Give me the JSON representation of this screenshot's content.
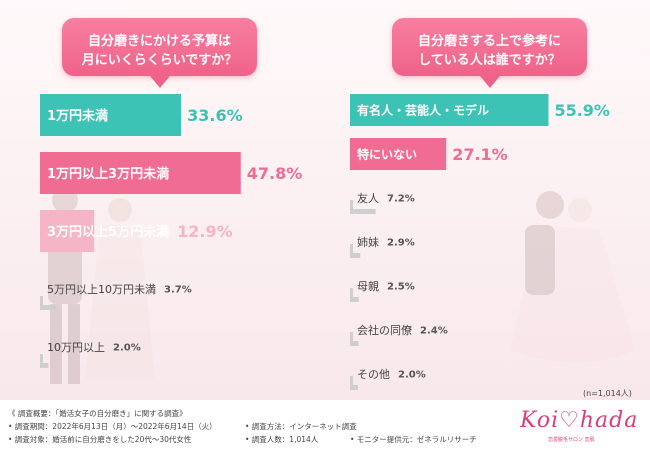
{
  "questions": {
    "left": [
      "自分磨きにかける予算は",
      "月にいくらくらいですか？"
    ],
    "right": [
      "自分磨きする上で参考に",
      "している人は誰ですか？"
    ]
  },
  "chart_data": [
    {
      "type": "bar",
      "orientation": "horizontal",
      "title": "自分磨きにかける予算は月にいくらくらいですか？",
      "categories": [
        "1万円未満",
        "1万円以上3万円未満",
        "3万円以上5万円未満",
        "5万円以上10万円未満",
        "10万円以上"
      ],
      "values": [
        33.6,
        47.8,
        12.9,
        3.7,
        2.0
      ],
      "value_labels": [
        "33.6%",
        "47.8%",
        "12.9%",
        "3.7%",
        "2.0%"
      ],
      "colors": [
        "#3cc3b5",
        "#f06c92",
        "#f6b5c6",
        "#cfcfcf",
        "#cfcfcf"
      ],
      "unit": "%"
    },
    {
      "type": "bar",
      "orientation": "horizontal",
      "title": "自分磨きする上で参考にしている人は誰ですか？",
      "categories": [
        "有名人・芸能人・モデル",
        "特にいない",
        "友人",
        "姉妹",
        "母親",
        "会社の同僚",
        "その他"
      ],
      "values": [
        55.9,
        27.1,
        7.2,
        2.9,
        2.5,
        2.4,
        2.0
      ],
      "value_labels": [
        "55.9%",
        "27.1%",
        "7.2%",
        "2.9%",
        "2.5%",
        "2.4%",
        "2.0%"
      ],
      "colors": [
        "#3cc3b5",
        "#f06c92",
        "#cfcfcf",
        "#cfcfcf",
        "#cfcfcf",
        "#cfcfcf",
        "#cfcfcf"
      ],
      "unit": "%"
    }
  ],
  "sample_note": "(n=1,014人)",
  "footer": {
    "summary": "《 調査概要：「婚活女子の自分磨き」に関する調査》",
    "period": "• 調査期間：2022年6月13日（月）～2022年6月14日（火）",
    "target": "• 調査対象：婚活前に自分磨きをした20代～30代女性",
    "method": "• 調査方法：インターネット調査",
    "count": "• 調査人数：1,014人",
    "provider": "• モニター提供元：ゼネラルリサーチ"
  },
  "logo": {
    "text": "Koi♡hada",
    "sub": "恋愛脱毛サロン 恋肌"
  },
  "colors": {
    "teal": "#3cc3b5",
    "pink": "#f06c92",
    "light_pink": "#f6b5c6",
    "gray": "#cfcfcf"
  }
}
